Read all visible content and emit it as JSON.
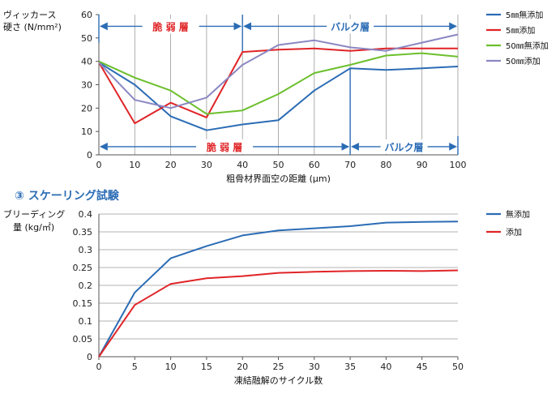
{
  "chart_data": [
    {
      "type": "line",
      "ylabel_lines": [
        "ヴィッカース",
        "硬さ (N/mm²)"
      ],
      "xlabel": "粗骨材界面空の距離 (μm)",
      "x_ticks": [
        0,
        10,
        20,
        30,
        40,
        50,
        60,
        70,
        80,
        90,
        100
      ],
      "y_ticks": [
        0,
        10,
        20,
        30,
        40,
        50,
        60
      ],
      "xlim": [
        0,
        100
      ],
      "ylim": [
        0,
        60
      ],
      "grid": "vertical",
      "legend_position": "right",
      "series": [
        {
          "name": "5㎜無添加",
          "color": "#2b6cb5",
          "x": [
            0,
            10,
            20,
            30,
            40,
            50,
            60,
            70,
            80,
            90,
            100
          ],
          "y": [
            39.5,
            30,
            16.5,
            10.5,
            13,
            14.8,
            27.5,
            37,
            36.3,
            37,
            37.8
          ]
        },
        {
          "name": "5㎜添加",
          "color": "#e02427",
          "x": [
            0,
            10,
            20,
            30,
            40,
            50,
            60,
            70,
            80,
            90,
            100
          ],
          "y": [
            39.5,
            13.5,
            22.3,
            16,
            44,
            45,
            45.5,
            44.5,
            45.5,
            45.5,
            45.5
          ]
        },
        {
          "name": "50㎜無添加",
          "color": "#6cbf2d",
          "x": [
            0,
            10,
            20,
            30,
            40,
            50,
            60,
            70,
            80,
            90,
            100
          ],
          "y": [
            40,
            33,
            27.5,
            17.5,
            19,
            26,
            35,
            38.5,
            42.5,
            43.5,
            42
          ]
        },
        {
          "name": "50㎜添加",
          "color": "#8a87c2",
          "x": [
            0,
            10,
            20,
            30,
            40,
            50,
            60,
            70,
            80,
            90,
            100
          ],
          "y": [
            39.5,
            23.5,
            20,
            24.5,
            38.5,
            47,
            49,
            46,
            44.5,
            48,
            51.5
          ]
        }
      ],
      "annotations": [
        {
          "label": "脆 弱 層",
          "color": "#e02427",
          "x_range": [
            0,
            40
          ],
          "y": 55
        },
        {
          "label": "バルク層",
          "color": "#2b6cb5",
          "x_range": [
            40,
            100
          ],
          "y": 55
        },
        {
          "label": "脆 弱 層",
          "color": "#e02427",
          "x_range": [
            0,
            70
          ],
          "y": 3.5
        },
        {
          "label": "バルク層",
          "color": "#2b6cb5",
          "x_range": [
            70,
            100
          ],
          "y": 3.5
        }
      ],
      "markers": [
        {
          "x": 40,
          "y_range": [
            44,
            60
          ]
        },
        {
          "x": 70,
          "y_range": [
            0,
            37
          ]
        }
      ]
    },
    {
      "type": "line",
      "title": "③ スケーリング試験",
      "ylabel_lines": [
        "ブリーディング",
        "量 (kg/㎡)"
      ],
      "xlabel": "凍結融解のサイクル数",
      "x_ticks": [
        0,
        5,
        10,
        15,
        20,
        25,
        30,
        35,
        40,
        45,
        50
      ],
      "y_ticks": [
        0,
        0.05,
        0.1,
        0.15,
        0.2,
        0.25,
        0.3,
        0.35,
        0.4
      ],
      "xlim": [
        0,
        50
      ],
      "ylim": [
        0,
        0.4
      ],
      "grid": "horizontal",
      "legend_position": "right",
      "series": [
        {
          "name": "無添加",
          "color": "#2b6cb5",
          "x": [
            0,
            5,
            10,
            15,
            20,
            25,
            30,
            35,
            40,
            45,
            50
          ],
          "y": [
            0,
            0.18,
            0.276,
            0.31,
            0.34,
            0.354,
            0.36,
            0.366,
            0.376,
            0.378,
            0.379
          ]
        },
        {
          "name": "添加",
          "color": "#e02427",
          "x": [
            0,
            5,
            10,
            15,
            20,
            25,
            30,
            35,
            40,
            45,
            50
          ],
          "y": [
            0,
            0.145,
            0.204,
            0.22,
            0.226,
            0.235,
            0.238,
            0.24,
            0.241,
            0.24,
            0.242
          ]
        }
      ]
    }
  ]
}
